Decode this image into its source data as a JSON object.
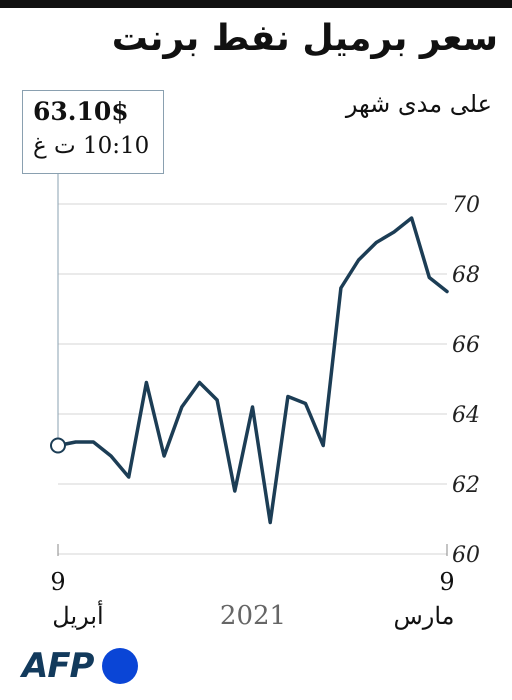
{
  "title": "سعر برميل نفط برنت",
  "subtitle": "على مدى شهر",
  "callout": {
    "price": "63.10$",
    "time": "10:10 ت غ"
  },
  "x_labels": {
    "left_day": "9",
    "left_month": "أبريل",
    "right_day": "9",
    "right_month": "مارس",
    "year": "2021"
  },
  "logo": {
    "text": "AFP"
  },
  "colors": {
    "line": "#1c3d55",
    "grid": "#d4d4d4",
    "axis": "#888888",
    "callout_border": "#8aa0b0"
  },
  "chart_data": {
    "type": "line",
    "title": "سعر برميل نفط برنت",
    "subtitle": "على مدى شهر",
    "xlabel": "",
    "ylabel": "",
    "ylim": [
      60,
      70
    ],
    "yticks": [
      60,
      62,
      64,
      66,
      68,
      70
    ],
    "y_axis_side": "right",
    "x_direction": "right-to-left",
    "grid": true,
    "x": [
      "9 مارس",
      "",
      "",
      "",
      "",
      "",
      "",
      "",
      "",
      "",
      "",
      "",
      "",
      "",
      "",
      "",
      "",
      "",
      "",
      "",
      "",
      "",
      "9 أبريل"
    ],
    "series": [
      {
        "values": [
          67.5,
          67.9,
          69.6,
          69.2,
          68.9,
          68.4,
          67.6,
          63.1,
          64.3,
          64.5,
          60.9,
          64.2,
          61.8,
          64.4,
          64.9,
          64.2,
          62.8,
          64.9,
          62.2,
          62.8,
          63.2,
          63.2,
          63.1
        ]
      }
    ]
  }
}
